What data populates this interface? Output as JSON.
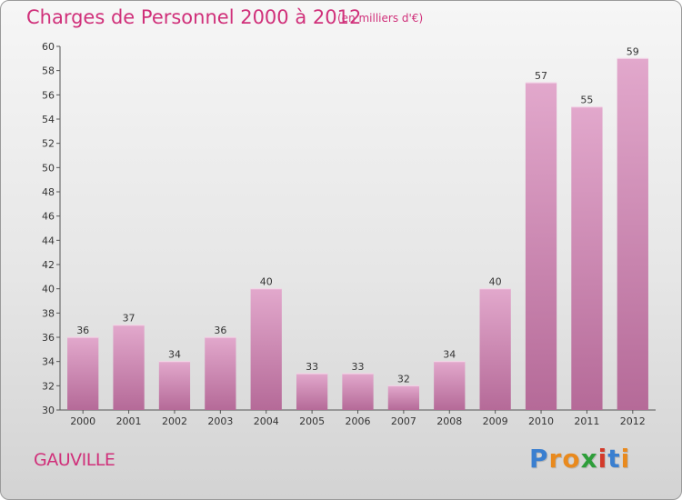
{
  "header": {
    "title": "Charges de Personnel 2000 à 2012",
    "subtitle": "(en milliers d'€)"
  },
  "footer": {
    "place": "GAUVILLE",
    "logo": [
      "P",
      "r",
      "o",
      "x",
      "i",
      "t",
      "i"
    ]
  },
  "colors": {
    "accent": "#d0307a",
    "bar_top": "#e2a8cc",
    "bar_bottom": "#b56a98",
    "logo": [
      "#3a7fd0",
      "#e98a1e",
      "#e98a1e",
      "#2e9e3a",
      "#d33a2a",
      "#3a7fd0",
      "#e98a1e"
    ]
  },
  "chart_data": {
    "type": "bar",
    "categories": [
      "2000",
      "2001",
      "2002",
      "2003",
      "2004",
      "2005",
      "2006",
      "2007",
      "2008",
      "2009",
      "2010",
      "2011",
      "2012"
    ],
    "values": [
      36,
      37,
      34,
      36,
      40,
      33,
      33,
      32,
      34,
      40,
      57,
      55,
      59
    ],
    "ylim": [
      30,
      60
    ],
    "yticks": [
      30,
      32,
      34,
      36,
      38,
      40,
      42,
      44,
      46,
      48,
      50,
      52,
      54,
      56,
      58,
      60
    ],
    "grid": false
  }
}
